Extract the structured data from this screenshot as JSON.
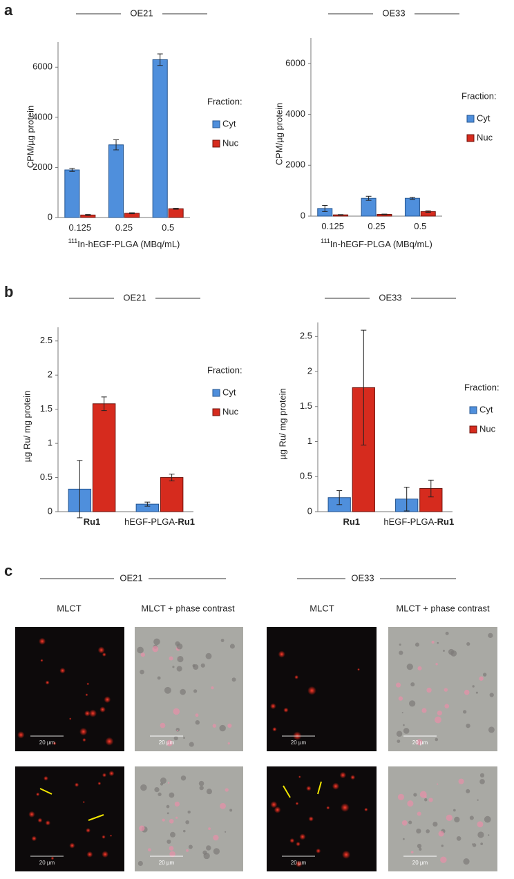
{
  "panel_labels": [
    "a",
    "b",
    "c"
  ],
  "chart_data": [
    {
      "type": "bar",
      "title": "OE21",
      "ylabel": "CPM/µg protein",
      "xlabel_sup": "111",
      "xlabel": "In-hEGF-PLGA (MBq/mL)",
      "categories": [
        [
          "0.125"
        ],
        [
          "0.25"
        ],
        [
          "0.5"
        ]
      ],
      "legend_title": "Fraction:",
      "series": [
        {
          "name": "Cyt",
          "color": "#4f8fdc",
          "values": [
            1900,
            2900,
            6300
          ],
          "errors": [
            60,
            200,
            230
          ]
        },
        {
          "name": "Nuc",
          "color": "#d62b1e",
          "values": [
            100,
            170,
            350
          ],
          "errors": [
            20,
            20,
            20
          ]
        }
      ],
      "ylim": [
        0,
        7000
      ],
      "yticks": [
        0,
        2000,
        4000,
        6000
      ],
      "grid": false
    },
    {
      "type": "bar",
      "title": "OE33",
      "ylabel": "CPM/µg protein",
      "xlabel_sup": "111",
      "xlabel": "In-hEGF-PLGA (MBq/mL)",
      "categories": [
        [
          "0.125"
        ],
        [
          "0.25"
        ],
        [
          "0.5"
        ]
      ],
      "legend_title": "Fraction:",
      "series": [
        {
          "name": "Cyt",
          "color": "#4f8fdc",
          "values": [
            300,
            700,
            700
          ],
          "errors": [
            120,
            80,
            40
          ]
        },
        {
          "name": "Nuc",
          "color": "#d62b1e",
          "values": [
            50,
            70,
            180
          ],
          "errors": [
            10,
            10,
            30
          ]
        }
      ],
      "ylim": [
        0,
        7000
      ],
      "yticks": [
        0,
        2000,
        4000,
        6000
      ],
      "grid": false
    },
    {
      "type": "bar",
      "title": "OE21",
      "ylabel": "µg Ru/ mg protein",
      "categories": [
        [
          {
            "text": "Ru1",
            "bold": true
          }
        ],
        [
          {
            "text": "hEGF-PLGA-",
            "bold": false
          },
          {
            "text": "Ru1",
            "bold": true
          }
        ]
      ],
      "legend_title": "Fraction:",
      "series": [
        {
          "name": "Cyt",
          "color": "#4f8fdc",
          "values": [
            0.33,
            0.11
          ],
          "errors": [
            0.42,
            0.03
          ]
        },
        {
          "name": "Nuc",
          "color": "#d62b1e",
          "values": [
            1.58,
            0.5
          ],
          "errors": [
            0.1,
            0.05
          ]
        }
      ],
      "ylim": [
        0,
        2.7
      ],
      "yticks": [
        0,
        0.5,
        1,
        1.5,
        2,
        2.5
      ],
      "grid": false
    },
    {
      "type": "bar",
      "title": "OE33",
      "ylabel": "µg Ru/ mg protein",
      "categories": [
        [
          {
            "text": "Ru1",
            "bold": true
          }
        ],
        [
          {
            "text": "hEGF-PLGA-",
            "bold": false
          },
          {
            "text": "Ru1",
            "bold": true
          }
        ]
      ],
      "legend_title": "Fraction:",
      "series": [
        {
          "name": "Cyt",
          "color": "#4f8fdc",
          "values": [
            0.2,
            0.18
          ],
          "errors": [
            0.1,
            0.17
          ]
        },
        {
          "name": "Nuc",
          "color": "#d62b1e",
          "values": [
            1.77,
            0.33
          ],
          "errors": [
            0.82,
            0.12
          ]
        }
      ],
      "ylim": [
        0,
        2.7
      ],
      "yticks": [
        0,
        0.5,
        1,
        1.5,
        2,
        2.5
      ],
      "grid": false
    }
  ],
  "micrographs": {
    "groups": [
      {
        "title": "OE21",
        "columns": [
          "MLCT",
          "MLCT + phase contrast"
        ]
      },
      {
        "title": "OE33",
        "columns": [
          "MLCT",
          "MLCT + phase contrast"
        ]
      }
    ],
    "scale_bar": "20 µm"
  }
}
